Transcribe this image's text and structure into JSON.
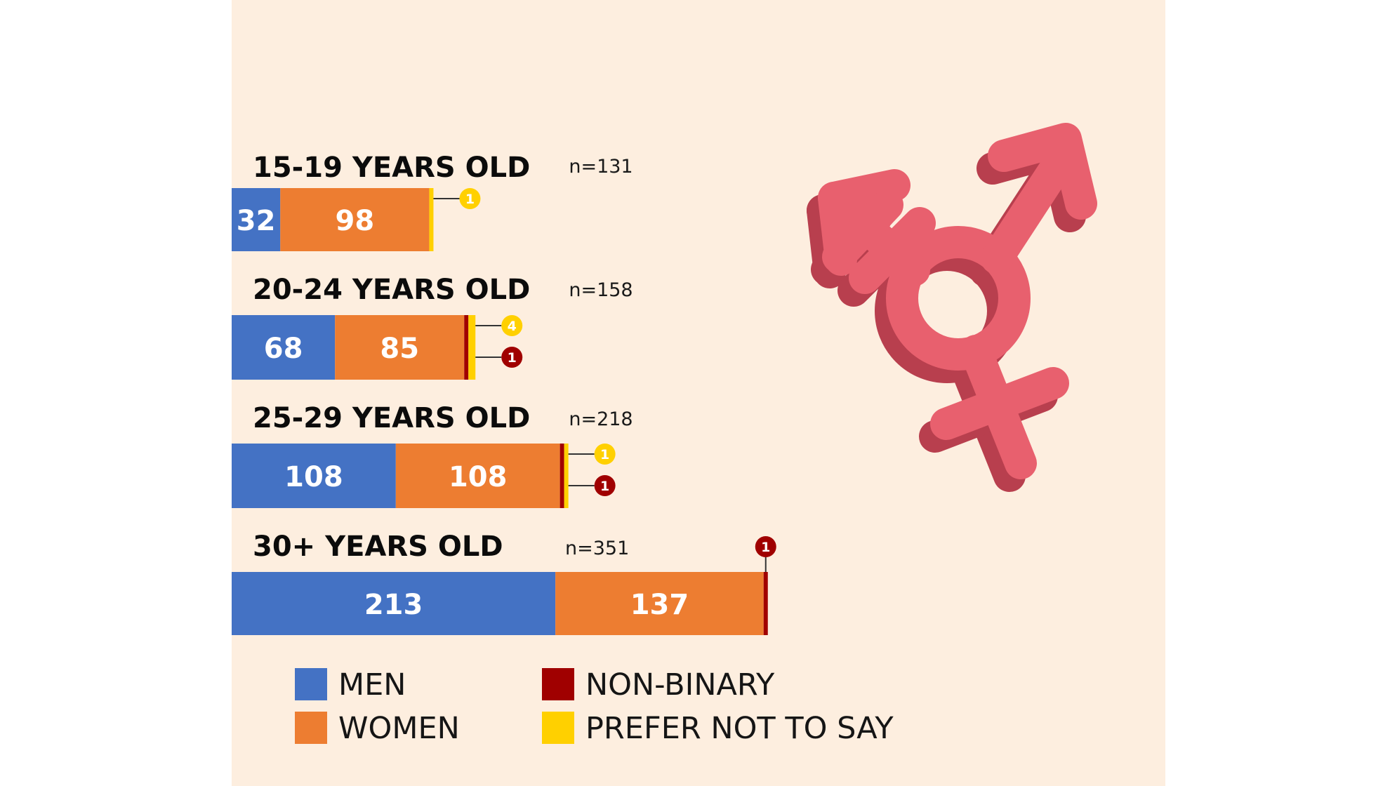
{
  "chart_data": {
    "type": "bar",
    "orientation": "horizontal",
    "stacked": true,
    "title": "",
    "categories": [
      "15-19 YEARS OLD",
      "20-24 YEARS OLD",
      "25-29 YEARS OLD",
      "30+ YEARS OLD"
    ],
    "n_labels": [
      "n=131",
      "n=158",
      "n=218",
      "n=351"
    ],
    "series": [
      {
        "name": "MEN",
        "color": "#4472c4",
        "values": [
          32,
          68,
          108,
          213
        ]
      },
      {
        "name": "WOMEN",
        "color": "#ed7d31",
        "values": [
          98,
          85,
          108,
          137
        ]
      },
      {
        "name": "NON-BINARY",
        "color": "#a00000",
        "values": [
          0,
          1,
          1,
          1
        ]
      },
      {
        "name": "PREFER NOT TO SAY",
        "color": "#ffd000",
        "values": [
          1,
          4,
          1,
          0
        ]
      }
    ],
    "legend": {
      "position": "bottom",
      "items": [
        "MEN",
        "WOMEN",
        "NON-BINARY",
        "PREFER NOT TO SAY"
      ]
    },
    "grid": false,
    "icon": "transgender-symbol-icon",
    "icon_color": "#e8606e"
  }
}
